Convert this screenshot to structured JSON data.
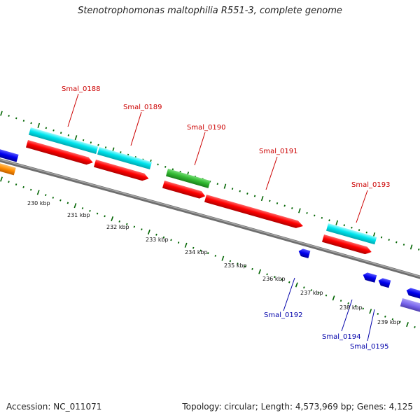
{
  "title": "Stenotrophomonas maltophilia R551-3, complete genome",
  "footer": {
    "accession": "Accession: NC_011071",
    "summary": "Topology: circular; Length: 4,573,969 bp; Genes: 4,125"
  },
  "ruler_labels": [
    "230 kbp",
    "231 kbp",
    "232 kbp",
    "233 kbp",
    "234 kbp",
    "235 kbp",
    "236 kbp",
    "237 kbp",
    "238 kbp",
    "239 kbp"
  ],
  "gene_labels": [
    "Smal_0188",
    "Smal_0189",
    "Smal_0190",
    "Smal_0191",
    "Smal_0192",
    "Smal_0193",
    "Smal_0194",
    "Smal_0195"
  ],
  "colors": {
    "backbone": "#808080",
    "cds": "#ff0000",
    "gene": "#00e5ee",
    "green_feature": "#33bb33",
    "blue_feature": "#0000ee",
    "orange_feature": "#ff8c00",
    "purple_feature": "#7b68ee",
    "tick": "#006400",
    "label_forward": "#cc0000",
    "label_reverse": "#0000aa"
  }
}
